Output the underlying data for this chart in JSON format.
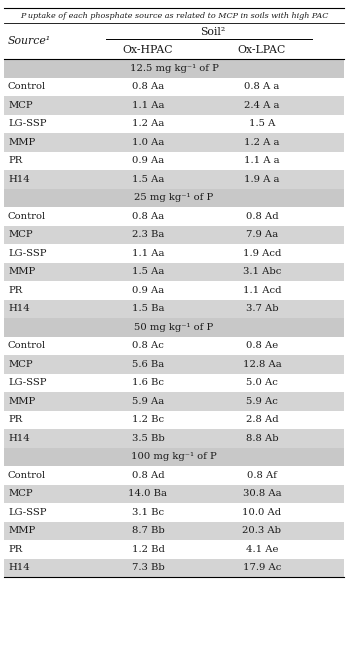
{
  "col_header_main": "Soil²",
  "col_header_sub1": "Ox-HPAC",
  "col_header_sub2": "Ox-LPAC",
  "row_header": "Source¹",
  "sections": [
    {
      "label": "12.5 mg kg⁻¹ of P",
      "rows": [
        [
          "Control",
          "0.8 Aa",
          "0.8 A a"
        ],
        [
          "MCP",
          "1.1 Aa",
          "2.4 A a"
        ],
        [
          "LG-SSP",
          "1.2 Aa",
          "1.5 A"
        ],
        [
          "MMP",
          "1.0 Aa",
          "1.2 A a"
        ],
        [
          "PR",
          "0.9 Aa",
          "1.1 A a"
        ],
        [
          "H14",
          "1.5 Aa",
          "1.9 A a"
        ]
      ]
    },
    {
      "label": "25 mg kg⁻¹ of P",
      "rows": [
        [
          "Control",
          "0.8 Aa",
          "0.8 Ad"
        ],
        [
          "MCP",
          "2.3 Ba",
          "7.9 Aa"
        ],
        [
          "LG-SSP",
          "1.1 Aa",
          "1.9 Acd"
        ],
        [
          "MMP",
          "1.5 Aa",
          "3.1 Abc"
        ],
        [
          "PR",
          "0.9 Aa",
          "1.1 Acd"
        ],
        [
          "H14",
          "1.5 Ba",
          "3.7 Ab"
        ]
      ]
    },
    {
      "label": "50 mg kg⁻¹ of P",
      "rows": [
        [
          "Control",
          "0.8 Ac",
          "0.8 Ae"
        ],
        [
          "MCP",
          "5.6 Ba",
          "12.8 Aa"
        ],
        [
          "LG-SSP",
          "1.6 Bc",
          "5.0 Ac"
        ],
        [
          "MMP",
          "5.9 Aa",
          "5.9 Ac"
        ],
        [
          "PR",
          "1.2 Bc",
          "2.8 Ad"
        ],
        [
          "H14",
          "3.5 Bb",
          "8.8 Ab"
        ]
      ]
    },
    {
      "label": "100 mg kg⁻¹ of P",
      "rows": [
        [
          "Control",
          "0.8 Ad",
          "0.8 Af"
        ],
        [
          "MCP",
          "14.0 Ba",
          "30.8 Aa"
        ],
        [
          "LG-SSP",
          "3.1 Bc",
          "10.0 Ad"
        ],
        [
          "MMP",
          "8.7 Bb",
          "20.3 Ab"
        ],
        [
          "PR",
          "1.2 Bd",
          "4.1 Ae"
        ],
        [
          "H14",
          "7.3 Bb",
          "17.9 Ac"
        ]
      ]
    }
  ],
  "bg_color_gray": "#d4d4d4",
  "bg_color_white": "#ffffff",
  "bg_color_section": "#c8c8c8",
  "text_color": "#1a1a1a",
  "font_size": 7.2,
  "header_font_size": 7.8,
  "title_font_size": 5.8
}
